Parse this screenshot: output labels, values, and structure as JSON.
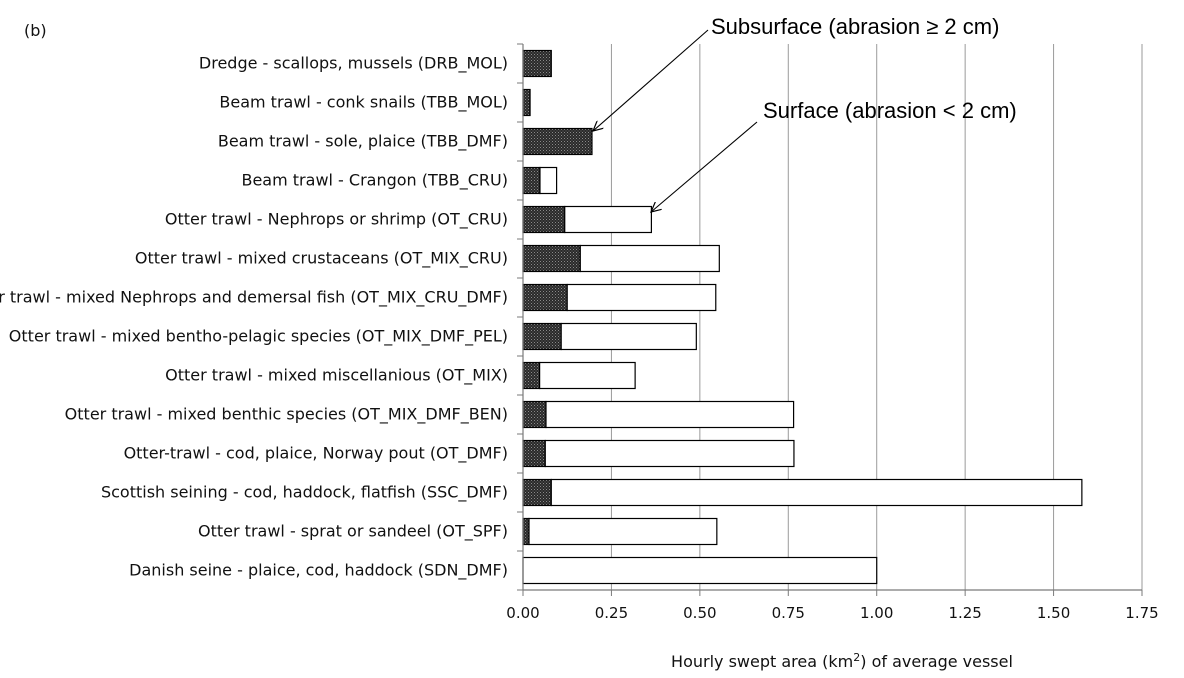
{
  "chart_data": {
    "type": "bar",
    "orientation": "horizontal",
    "stacked": true,
    "panel_label": "(b)",
    "xlabel_prefix": "Hourly swept area (km",
    "xlabel_sup": "2",
    "xlabel_suffix": ") of average vessel",
    "xlim": [
      0,
      1.75
    ],
    "xticks": [
      "0.00",
      "0.25",
      "0.50",
      "0.75",
      "1.00",
      "1.25",
      "1.50",
      "1.75"
    ],
    "grid": "vertical",
    "categories": [
      "Dredge - scallops, mussels (DRB_MOL)",
      "Beam trawl - conk snails (TBB_MOL)",
      "Beam trawl - sole, plaice (TBB_DMF)",
      "Beam trawl - Crangon (TBB_CRU)",
      "Otter trawl - Nephrops or shrimp (OT_CRU)",
      "Otter trawl - mixed crustaceans (OT_MIX_CRU)",
      "Otter trawl - mixed Nephrops and demersal fish (OT_MIX_CRU_DMF)",
      "Otter trawl - mixed bentho-pelagic species (OT_MIX_DMF_PEL)",
      "Otter trawl - mixed miscellanious (OT_MIX)",
      "Otter trawl - mixed benthic species (OT_MIX_DMF_BEN)",
      "Otter-trawl - cod, plaice, Norway pout (OT_DMF)",
      "Scottish seining - cod, haddock, flatfish (SSC_DMF)",
      "Otter trawl - sprat or sandeel (OT_SPF)",
      "Danish seine - plaice, cod, haddock (SDN_DMF)"
    ],
    "series": [
      {
        "name": "Subsurface (abrasion ≥ 2 cm)",
        "fill": "dotted-dark",
        "values": [
          0.08,
          0.02,
          0.195,
          0.048,
          0.118,
          0.162,
          0.125,
          0.108,
          0.047,
          0.065,
          0.063,
          0.08,
          0.017,
          0.0
        ]
      },
      {
        "name": "Surface (abrasion < 2 cm)",
        "fill": "white",
        "values": [
          0.0,
          0.0,
          0.0,
          0.047,
          0.245,
          0.393,
          0.42,
          0.382,
          0.27,
          0.7,
          0.703,
          1.5,
          0.531,
          1.0
        ]
      }
    ],
    "annotations": [
      {
        "text": "Subsurface (abrasion ≥ 2 cm)",
        "points_to": "Beam trawl - sole, plaice (TBB_DMF)"
      },
      {
        "text": "Surface (abrasion < 2 cm)",
        "points_to": "Otter trawl - Nephrops or shrimp (OT_CRU)"
      }
    ]
  }
}
